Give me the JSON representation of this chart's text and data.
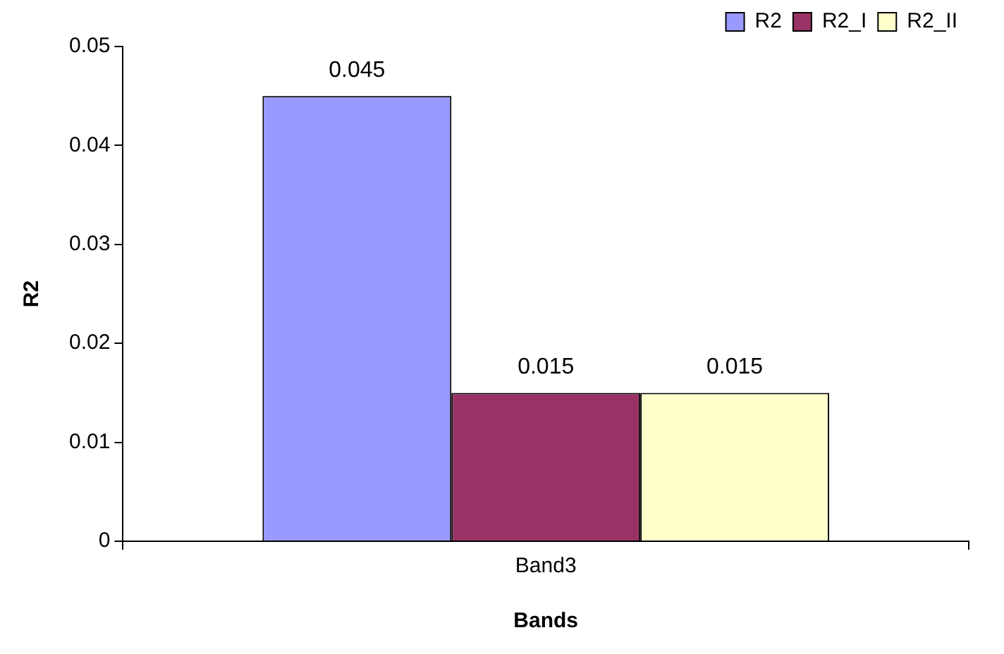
{
  "chart_data": {
    "type": "bar",
    "xlabel": "Bands",
    "ylabel": "R2",
    "categories": [
      "Band3"
    ],
    "series": [
      {
        "name": "R2",
        "color": "#9999ff",
        "values": [
          0.045
        ]
      },
      {
        "name": "R2_I",
        "color": "#993366",
        "values": [
          0.015
        ]
      },
      {
        "name": "R2_II",
        "color": "#ffffcc",
        "values": [
          0.015
        ]
      }
    ],
    "ylim": [
      0,
      0.05
    ],
    "yticks": [
      0,
      0.01,
      0.02,
      0.03,
      0.04,
      0.05
    ],
    "grid": false,
    "legend": "top right",
    "data_labels": true
  }
}
